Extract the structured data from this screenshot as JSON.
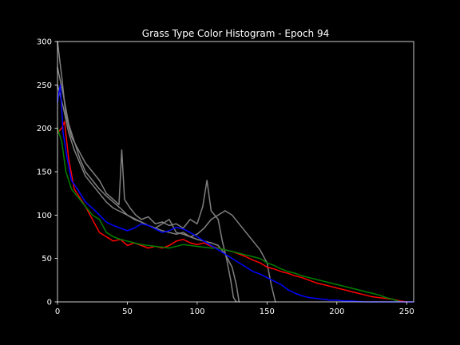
{
  "chart_data": {
    "type": "line",
    "title": "Grass Type Color Histogram - Epoch 94",
    "xlabel": "",
    "ylabel": "",
    "xlim": [
      0,
      255
    ],
    "ylim": [
      0,
      300
    ],
    "x_ticks": [
      0,
      50,
      100,
      150,
      200,
      250
    ],
    "y_ticks": [
      0,
      50,
      100,
      150,
      200,
      250,
      300
    ],
    "grid": false,
    "background": "#000000",
    "axis_color": "#ffffff",
    "series": [
      {
        "color": "#808080",
        "points": [
          [
            0,
            300
          ],
          [
            3,
            260
          ],
          [
            6,
            215
          ],
          [
            10,
            190
          ],
          [
            15,
            175
          ],
          [
            20,
            160
          ],
          [
            25,
            150
          ],
          [
            30,
            140
          ],
          [
            35,
            125
          ],
          [
            40,
            118
          ],
          [
            44,
            112
          ],
          [
            46,
            175
          ],
          [
            48,
            118
          ],
          [
            52,
            108
          ],
          [
            56,
            100
          ],
          [
            60,
            95
          ],
          [
            65,
            98
          ],
          [
            70,
            90
          ],
          [
            75,
            92
          ],
          [
            80,
            88
          ],
          [
            85,
            90
          ],
          [
            90,
            85
          ],
          [
            95,
            95
          ],
          [
            100,
            90
          ],
          [
            104,
            110
          ],
          [
            107,
            140
          ],
          [
            110,
            105
          ],
          [
            115,
            95
          ],
          [
            118,
            70
          ],
          [
            121,
            50
          ],
          [
            124,
            25
          ],
          [
            126,
            5
          ],
          [
            128,
            0
          ]
        ]
      },
      {
        "color": "#808080",
        "points": [
          [
            0,
            270
          ],
          [
            4,
            240
          ],
          [
            8,
            205
          ],
          [
            12,
            185
          ],
          [
            16,
            165
          ],
          [
            20,
            150
          ],
          [
            25,
            140
          ],
          [
            30,
            130
          ],
          [
            35,
            122
          ],
          [
            40,
            115
          ],
          [
            45,
            108
          ],
          [
            50,
            100
          ],
          [
            55,
            95
          ],
          [
            60,
            92
          ],
          [
            65,
            88
          ],
          [
            70,
            85
          ],
          [
            75,
            82
          ],
          [
            80,
            80
          ],
          [
            85,
            78
          ],
          [
            90,
            80
          ],
          [
            95,
            75
          ],
          [
            100,
            78
          ],
          [
            105,
            85
          ],
          [
            110,
            95
          ],
          [
            115,
            100
          ],
          [
            120,
            105
          ],
          [
            125,
            100
          ],
          [
            130,
            90
          ],
          [
            135,
            80
          ],
          [
            140,
            70
          ],
          [
            145,
            60
          ],
          [
            150,
            45
          ],
          [
            153,
            20
          ],
          [
            156,
            0
          ]
        ]
      },
      {
        "color": "#808080",
        "points": [
          [
            0,
            250
          ],
          [
            4,
            225
          ],
          [
            8,
            195
          ],
          [
            12,
            175
          ],
          [
            16,
            160
          ],
          [
            20,
            145
          ],
          [
            25,
            135
          ],
          [
            30,
            125
          ],
          [
            35,
            115
          ],
          [
            40,
            108
          ],
          [
            45,
            104
          ],
          [
            50,
            100
          ],
          [
            55,
            96
          ],
          [
            60,
            92
          ],
          [
            65,
            88
          ],
          [
            70,
            85
          ],
          [
            75,
            90
          ],
          [
            80,
            95
          ],
          [
            85,
            80
          ],
          [
            90,
            78
          ],
          [
            95,
            75
          ],
          [
            100,
            72
          ],
          [
            105,
            70
          ],
          [
            110,
            68
          ],
          [
            115,
            65
          ],
          [
            120,
            55
          ],
          [
            125,
            40
          ],
          [
            128,
            20
          ],
          [
            130,
            0
          ]
        ]
      },
      {
        "color": "#ff0000",
        "points": [
          [
            0,
            195
          ],
          [
            3,
            200
          ],
          [
            5,
            208
          ],
          [
            8,
            165
          ],
          [
            12,
            130
          ],
          [
            16,
            120
          ],
          [
            20,
            110
          ],
          [
            25,
            95
          ],
          [
            30,
            80
          ],
          [
            35,
            75
          ],
          [
            40,
            70
          ],
          [
            45,
            72
          ],
          [
            50,
            65
          ],
          [
            55,
            68
          ],
          [
            60,
            65
          ],
          [
            65,
            62
          ],
          [
            70,
            64
          ],
          [
            75,
            62
          ],
          [
            80,
            65
          ],
          [
            85,
            70
          ],
          [
            90,
            72
          ],
          [
            95,
            68
          ],
          [
            100,
            66
          ],
          [
            105,
            68
          ],
          [
            110,
            64
          ],
          [
            115,
            62
          ],
          [
            120,
            60
          ],
          [
            125,
            58
          ],
          [
            130,
            55
          ],
          [
            135,
            52
          ],
          [
            140,
            48
          ],
          [
            145,
            45
          ],
          [
            150,
            40
          ],
          [
            155,
            38
          ],
          [
            160,
            35
          ],
          [
            165,
            33
          ],
          [
            170,
            30
          ],
          [
            175,
            28
          ],
          [
            180,
            25
          ],
          [
            185,
            22
          ],
          [
            190,
            20
          ],
          [
            195,
            18
          ],
          [
            200,
            16
          ],
          [
            205,
            14
          ],
          [
            210,
            12
          ],
          [
            215,
            10
          ],
          [
            220,
            8
          ],
          [
            225,
            6
          ],
          [
            230,
            5
          ],
          [
            235,
            4
          ],
          [
            240,
            3
          ],
          [
            245,
            1
          ],
          [
            250,
            0
          ]
        ]
      },
      {
        "color": "#008000",
        "points": [
          [
            0,
            200
          ],
          [
            3,
            185
          ],
          [
            6,
            150
          ],
          [
            10,
            130
          ],
          [
            15,
            120
          ],
          [
            20,
            110
          ],
          [
            25,
            100
          ],
          [
            30,
            95
          ],
          [
            35,
            80
          ],
          [
            40,
            75
          ],
          [
            45,
            72
          ],
          [
            50,
            70
          ],
          [
            55,
            68
          ],
          [
            60,
            66
          ],
          [
            65,
            65
          ],
          [
            70,
            64
          ],
          [
            75,
            63
          ],
          [
            80,
            62
          ],
          [
            85,
            64
          ],
          [
            90,
            66
          ],
          [
            95,
            65
          ],
          [
            100,
            64
          ],
          [
            105,
            63
          ],
          [
            110,
            62
          ],
          [
            115,
            62
          ],
          [
            120,
            60
          ],
          [
            125,
            58
          ],
          [
            130,
            56
          ],
          [
            135,
            54
          ],
          [
            140,
            52
          ],
          [
            145,
            50
          ],
          [
            150,
            45
          ],
          [
            155,
            42
          ],
          [
            160,
            38
          ],
          [
            165,
            35
          ],
          [
            170,
            33
          ],
          [
            175,
            30
          ],
          [
            180,
            28
          ],
          [
            185,
            26
          ],
          [
            190,
            24
          ],
          [
            195,
            22
          ],
          [
            200,
            20
          ],
          [
            205,
            18
          ],
          [
            210,
            16
          ],
          [
            215,
            14
          ],
          [
            220,
            12
          ],
          [
            225,
            10
          ],
          [
            230,
            8
          ],
          [
            235,
            5
          ],
          [
            240,
            3
          ],
          [
            245,
            0
          ]
        ]
      },
      {
        "color": "#0000ff",
        "points": [
          [
            0,
            230
          ],
          [
            2,
            250
          ],
          [
            4,
            195
          ],
          [
            7,
            165
          ],
          [
            10,
            140
          ],
          [
            15,
            128
          ],
          [
            20,
            115
          ],
          [
            25,
            108
          ],
          [
            30,
            100
          ],
          [
            35,
            92
          ],
          [
            40,
            88
          ],
          [
            45,
            85
          ],
          [
            50,
            82
          ],
          [
            55,
            85
          ],
          [
            60,
            90
          ],
          [
            65,
            88
          ],
          [
            70,
            84
          ],
          [
            75,
            80
          ],
          [
            80,
            82
          ],
          [
            85,
            86
          ],
          [
            90,
            84
          ],
          [
            95,
            80
          ],
          [
            100,
            75
          ],
          [
            105,
            70
          ],
          [
            110,
            65
          ],
          [
            115,
            60
          ],
          [
            120,
            55
          ],
          [
            125,
            50
          ],
          [
            130,
            45
          ],
          [
            135,
            40
          ],
          [
            140,
            35
          ],
          [
            145,
            32
          ],
          [
            150,
            28
          ],
          [
            155,
            24
          ],
          [
            160,
            20
          ],
          [
            165,
            14
          ],
          [
            170,
            10
          ],
          [
            175,
            7
          ],
          [
            180,
            5
          ],
          [
            185,
            4
          ],
          [
            190,
            3
          ],
          [
            195,
            2
          ],
          [
            200,
            2
          ],
          [
            205,
            1
          ],
          [
            210,
            1
          ],
          [
            220,
            0
          ],
          [
            230,
            0
          ],
          [
            240,
            0
          ],
          [
            255,
            0
          ]
        ]
      }
    ]
  }
}
